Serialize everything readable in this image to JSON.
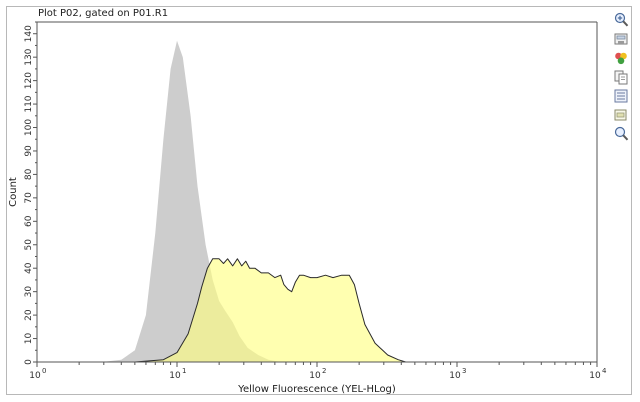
{
  "plot_title": "Plot P02, gated on P01.R1",
  "toolbar": {
    "icons": [
      "zoom-in-icon",
      "save-icon",
      "overlay-colors-icon",
      "copy-icon",
      "statistics-icon",
      "export-icon",
      "zoom-icon"
    ]
  },
  "colors": {
    "control_fill": "#cdcdcd",
    "sample_fill": "#ffff80",
    "sample_outline": "#2a2a2a",
    "axis": "#555555"
  },
  "chart_data": {
    "type": "area",
    "title": "",
    "xlabel": "Yellow Fluorescence (YEL-HLog)",
    "ylabel": "Count",
    "x_scale": "log",
    "xlim": [
      1,
      10000
    ],
    "ylim": [
      0,
      145
    ],
    "x_ticks": [
      {
        "base": "10",
        "exp": "0"
      },
      {
        "base": "10",
        "exp": "1"
      },
      {
        "base": "10",
        "exp": "2"
      },
      {
        "base": "10",
        "exp": "3"
      },
      {
        "base": "10",
        "exp": "4"
      }
    ],
    "y_ticks": [
      "0",
      "10",
      "20",
      "30",
      "40",
      "50",
      "60",
      "70",
      "80",
      "90",
      "100",
      "110",
      "120",
      "130",
      "140"
    ],
    "grid": false,
    "series": [
      {
        "fill": "#cdcdcd",
        "stroke": "none",
        "x": [
          2.9,
          4.0,
          5.0,
          6.0,
          7.0,
          8.0,
          9.0,
          10.0,
          11.0,
          12.5,
          14.0,
          16.0,
          18.0,
          20.0,
          22.0,
          25.0,
          28.0,
          32.0,
          38.0,
          45.0,
          55.0
        ],
        "y": [
          0,
          1,
          5,
          20,
          55,
          95,
          125,
          137,
          130,
          105,
          75,
          50,
          35,
          26,
          22,
          17,
          11,
          6,
          3,
          1,
          0
        ]
      },
      {
        "fill": "#ffff80",
        "stroke": "#2a2a2a",
        "x": [
          5.0,
          8.0,
          10.0,
          12.0,
          14.0,
          15.0,
          16.5,
          18.0,
          20.0,
          21.5,
          23.0,
          25.0,
          27.0,
          29.0,
          31.0,
          33.0,
          36.0,
          40.0,
          45.0,
          50.0,
          55.0,
          58.0,
          62.0,
          66.0,
          70.0,
          75.0,
          80.0,
          90.0,
          100.0,
          115.0,
          130.0,
          150.0,
          170.0,
          185.0,
          200.0,
          220.0,
          260.0,
          320.0,
          380.0,
          430.0
        ],
        "y": [
          0,
          1,
          4,
          12,
          25,
          32,
          40,
          44,
          44,
          42,
          44,
          41,
          44,
          41,
          43,
          40,
          40,
          38,
          38,
          36,
          37,
          33,
          31,
          30,
          34,
          37,
          37,
          36,
          36,
          37,
          36,
          37,
          37,
          33,
          25,
          16,
          8,
          3,
          1,
          0
        ]
      }
    ]
  }
}
